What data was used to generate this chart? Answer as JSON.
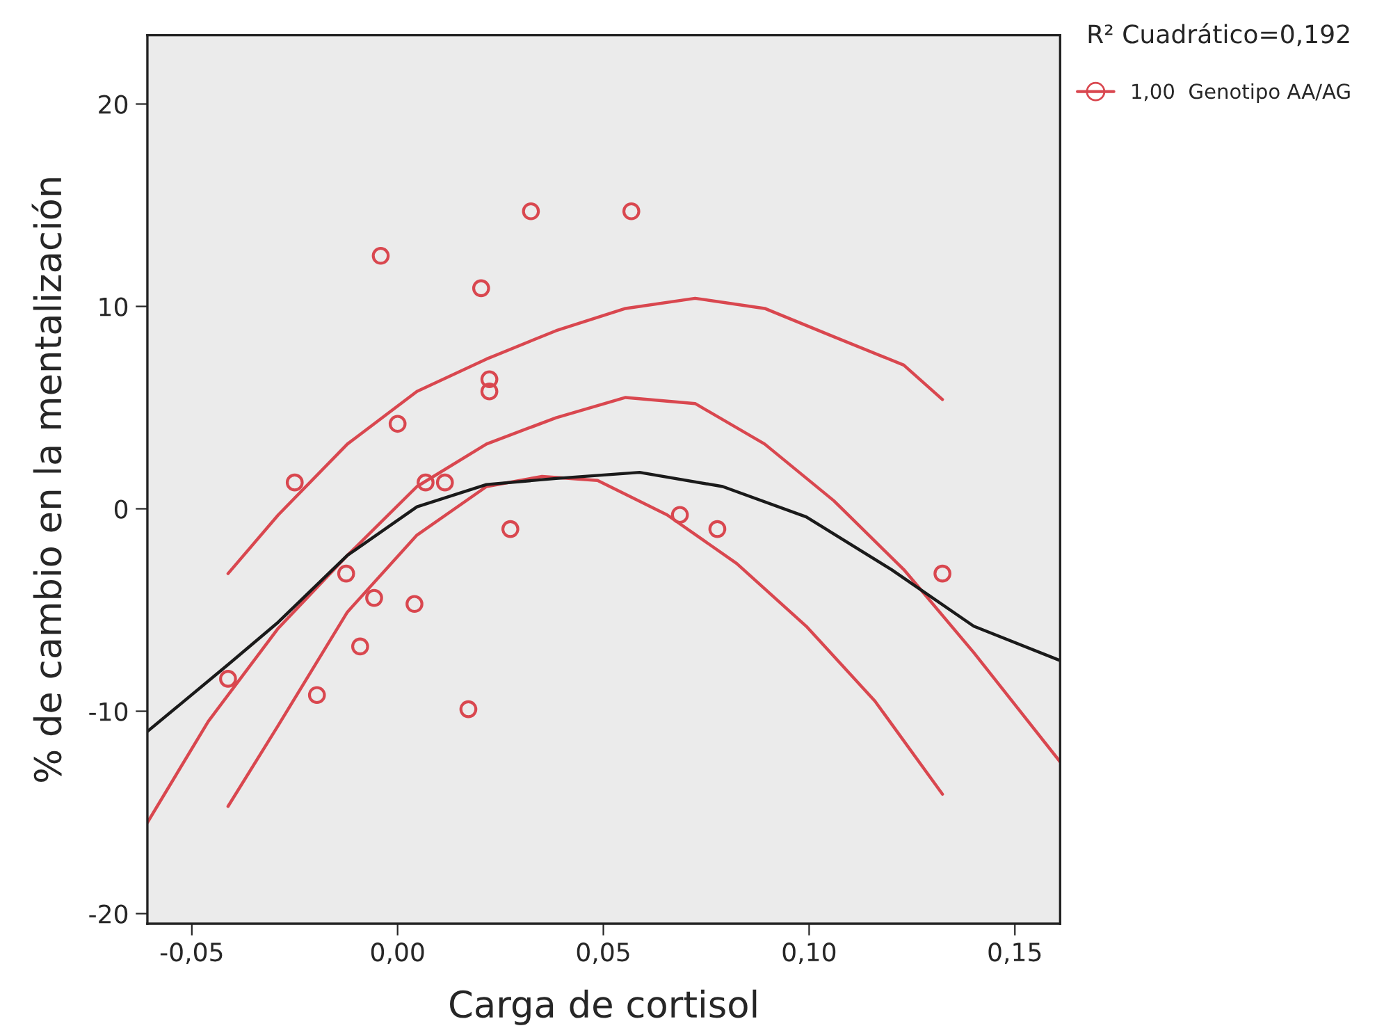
{
  "chart_data": {
    "type": "scatter",
    "xlabel": "Carga de cortisol",
    "ylabel": "% de cambio en la mentalización",
    "annotations": [
      "R² Cuadrático=0,192"
    ],
    "xlim": [
      -0.0608,
      0.161
    ],
    "ylim": [
      -20.5,
      23.4
    ],
    "xticks": [
      {
        "value": -0.05,
        "label": "-0,05"
      },
      {
        "value": 0.0,
        "label": "0,00"
      },
      {
        "value": 0.05,
        "label": "0,05"
      },
      {
        "value": 0.1,
        "label": "0,10"
      },
      {
        "value": 0.15,
        "label": "0,15"
      }
    ],
    "yticks": [
      -20,
      -10,
      0,
      10,
      20
    ],
    "grid": false,
    "legend": "top right",
    "series": [
      {
        "type": "line",
        "color": "#d9474f",
        "marker": "none",
        "line_style": "solid",
        "x": [
          -0.0412,
          -0.029,
          -0.0122,
          0.0047,
          0.0216,
          0.0385,
          0.0554,
          0.0723,
          0.0892,
          0.106,
          0.123,
          0.1324
        ],
        "values": [
          -3.2,
          -0.3,
          3.2,
          5.8,
          7.4,
          8.8,
          9.9,
          10.4,
          9.9,
          8.5,
          7.1,
          5.4
        ]
      },
      {
        "type": "line",
        "color": "#d9474f",
        "marker": "none",
        "line_style": "solid",
        "x": [
          -0.0608,
          -0.046,
          -0.029,
          -0.0122,
          0.0047,
          0.0216,
          0.0385,
          0.0554,
          0.0723,
          0.0892,
          0.106,
          0.123,
          0.14,
          0.161
        ],
        "values": [
          -15.5,
          -10.5,
          -5.9,
          -2.3,
          1.1,
          3.2,
          4.5,
          5.5,
          5.2,
          3.2,
          0.4,
          -3.0,
          -7.1,
          -12.5
        ]
      },
      {
        "type": "line",
        "color": "#d9474f",
        "marker": "none",
        "line_style": "solid",
        "x": [
          -0.0412,
          -0.029,
          -0.0122,
          0.0047,
          0.0216,
          0.0351,
          0.0486,
          0.0655,
          0.0824,
          0.0993,
          0.116,
          0.1324
        ],
        "values": [
          -14.7,
          -10.7,
          -5.1,
          -1.3,
          1.1,
          1.6,
          1.4,
          -0.3,
          -2.7,
          -5.8,
          -9.5,
          -14.1
        ]
      },
      {
        "type": "line",
        "color": "#1a1a1a",
        "marker": "none",
        "line_style": "solid",
        "x": [
          -0.0608,
          -0.0412,
          -0.029,
          -0.0122,
          0.0047,
          0.0216,
          0.0385,
          0.0588,
          0.079,
          0.0993,
          0.12,
          0.14,
          0.161
        ],
        "values": [
          -11.0,
          -7.7,
          -5.6,
          -2.3,
          0.1,
          1.2,
          1.5,
          1.8,
          1.1,
          -0.4,
          -3.0,
          -5.8,
          -7.5
        ]
      },
      {
        "name": "1,00  Genotipo AA/AG",
        "color": "#d9474f",
        "marker": "circle",
        "x": [
          -0.0412,
          -0.025,
          -0.0196,
          -0.0125,
          -0.0091,
          -0.0057,
          -0.0041,
          0.0,
          0.0041,
          0.0068,
          0.0115,
          0.0172,
          0.0203,
          0.0223,
          0.0223,
          0.0274,
          0.0324,
          0.0568,
          0.0686,
          0.0777,
          0.1324
        ],
        "values": [
          -8.4,
          1.3,
          -9.2,
          -3.2,
          -6.8,
          -4.4,
          12.5,
          4.2,
          -4.7,
          1.3,
          1.3,
          -9.9,
          10.9,
          6.4,
          5.8,
          -1.0,
          14.7,
          14.7,
          -0.3,
          -1.0,
          -3.2
        ]
      }
    ]
  }
}
